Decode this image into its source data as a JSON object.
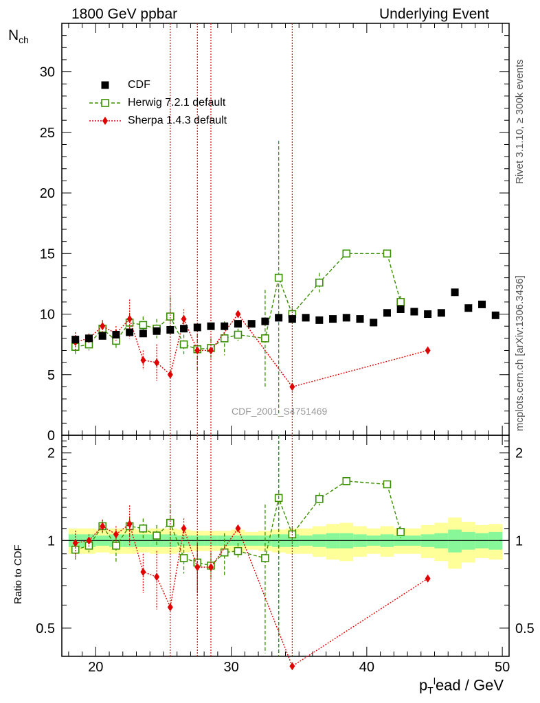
{
  "header": {
    "left": "1800 GeV ppbar",
    "right": "Underlying Event"
  },
  "side_labels": {
    "rivet": "Rivet 3.1.10, ≥ 300k events",
    "mcplots": "mcplots.cern.ch [arXiv:1306.3436]"
  },
  "watermark": "CDF_2001_S4751469",
  "chart_data": [
    {
      "type": "scatter",
      "panel": "main",
      "ylabel_main": "N",
      "ylabel_sub": "ch",
      "xlim": [
        17.5,
        50.5
      ],
      "ylim": [
        0,
        34
      ],
      "yticks": [
        0,
        5,
        10,
        15,
        20,
        25,
        30
      ],
      "legend_placement": "top-left",
      "series": [
        {
          "name": "CDF",
          "color": "#000000",
          "marker": "filled-square",
          "x": [
            18.5,
            19.5,
            20.5,
            21.5,
            22.5,
            23.5,
            24.5,
            25.5,
            26.5,
            27.5,
            28.5,
            29.5,
            30.5,
            31.5,
            32.5,
            33.5,
            34.5,
            35.5,
            36.5,
            37.5,
            38.5,
            39.5,
            40.5,
            41.5,
            42.5,
            43.5,
            44.5,
            45.5,
            46.5,
            47.5,
            48.5,
            49.5
          ],
          "y": [
            7.9,
            8.0,
            8.2,
            8.3,
            8.5,
            8.4,
            8.6,
            8.7,
            8.8,
            8.9,
            9.0,
            9.0,
            9.2,
            9.2,
            9.4,
            9.7,
            9.6,
            9.7,
            9.5,
            9.6,
            9.7,
            9.6,
            9.3,
            10.1,
            10.4,
            10.2,
            10.0,
            10.1,
            11.8,
            10.5,
            10.8,
            9.9
          ]
        },
        {
          "name": "Herwig 7.2.1 default",
          "color": "#3a8f00",
          "marker": "open-square",
          "x": [
            18.5,
            19.5,
            20.5,
            21.5,
            22.5,
            23.5,
            24.5,
            25.5,
            26.5,
            27.5,
            28.5,
            29.5,
            30.5,
            32.5,
            33.5,
            34.5,
            36.5,
            38.5,
            41.5,
            42.5
          ],
          "y": [
            7.3,
            7.5,
            8.8,
            7.8,
            9.3,
            9.1,
            8.8,
            9.8,
            7.5,
            7.1,
            7.2,
            8.0,
            8.3,
            8.0,
            13.0,
            10.0,
            12.6,
            15.0,
            15.0,
            11.0
          ],
          "err": [
            0.6,
            0.5,
            0.7,
            0.6,
            0.8,
            0.7,
            0.8,
            1.6,
            0.8,
            1.7,
            0.8,
            1.4,
            0.5,
            4.0,
            11.3,
            0.5,
            0.8,
            0.0,
            0.0,
            0.5
          ]
        },
        {
          "name": "Sherpa 1.4.3 default",
          "color": "#e00000",
          "marker": "filled-diamond",
          "x": [
            18.5,
            19.5,
            20.5,
            21.5,
            22.5,
            23.5,
            24.5,
            25.5,
            26.5,
            27.5,
            28.5,
            30.5,
            34.5,
            44.5
          ],
          "y": [
            7.7,
            8.0,
            9.0,
            8.4,
            9.6,
            6.2,
            6.0,
            5.0,
            9.6,
            7.0,
            7.0,
            10.0,
            4.0,
            7.0
          ],
          "err": [
            0.8,
            0.4,
            0.5,
            0.6,
            1.6,
            0.8,
            1.5,
            0,
            0.8,
            1.4,
            0,
            0,
            0,
            0
          ],
          "full_height_err": [
            25.5,
            27.5,
            28.5,
            34.5
          ]
        }
      ]
    },
    {
      "type": "scatter",
      "panel": "ratio",
      "ylabel": "Ratio to CDF",
      "xlabel_main": "p",
      "xlabel_sub": "T",
      "xlabel_sup": "l",
      "xlabel_rest": "ead / GeV",
      "xlim": [
        17.5,
        50.5
      ],
      "ylim": [
        0.4,
        2.3
      ],
      "yticks": [
        0.5,
        1,
        2
      ],
      "xticks": [
        20,
        30,
        40,
        50
      ],
      "band_x": [
        18,
        19,
        20,
        21,
        22,
        23,
        24,
        25,
        26,
        27,
        28,
        29,
        30,
        31,
        32,
        33,
        34,
        35,
        36,
        37,
        38,
        39,
        40,
        41,
        42,
        43,
        44,
        45,
        46,
        47,
        48,
        49,
        50
      ],
      "band_inner": [
        0.05,
        0.05,
        0.04,
        0.05,
        0.05,
        0.05,
        0.05,
        0.05,
        0.04,
        0.04,
        0.04,
        0.04,
        0.04,
        0.04,
        0.04,
        0.05,
        0.05,
        0.04,
        0.05,
        0.06,
        0.06,
        0.05,
        0.04,
        0.05,
        0.04,
        0.04,
        0.05,
        0.06,
        0.09,
        0.07,
        0.06,
        0.07
      ],
      "band_outer": [
        0.1,
        0.1,
        0.09,
        0.1,
        0.1,
        0.09,
        0.1,
        0.1,
        0.09,
        0.08,
        0.08,
        0.08,
        0.09,
        0.07,
        0.08,
        0.09,
        0.1,
        0.1,
        0.12,
        0.14,
        0.15,
        0.12,
        0.1,
        0.12,
        0.1,
        0.1,
        0.13,
        0.15,
        0.2,
        0.16,
        0.13,
        0.14
      ],
      "series": [
        {
          "name": "Herwig 7.2.1 default",
          "x": [
            18.5,
            19.5,
            20.5,
            21.5,
            22.5,
            23.5,
            24.5,
            25.5,
            26.5,
            27.5,
            28.5,
            29.5,
            30.5,
            32.5,
            33.5,
            34.5,
            36.5,
            38.5,
            41.5,
            42.5
          ],
          "y": [
            0.93,
            0.96,
            1.12,
            0.96,
            1.12,
            1.1,
            1.04,
            1.15,
            0.87,
            0.84,
            0.82,
            0.91,
            0.92,
            0.87,
            1.4,
            1.05,
            1.39,
            1.6,
            1.56,
            1.07
          ],
          "err": [
            0.07,
            0.05,
            0.06,
            0.12,
            0.08,
            0.09,
            0.09,
            0.18,
            0.1,
            0.18,
            0.09,
            0.15,
            0.06,
            0.46,
            1.2,
            0.06,
            0.07,
            0.0,
            0.0,
            0.05
          ]
        },
        {
          "name": "Sherpa 1.4.3 default",
          "x": [
            18.5,
            19.5,
            20.5,
            21.5,
            22.5,
            23.5,
            24.5,
            25.5,
            26.5,
            27.5,
            28.5,
            30.5,
            34.5,
            44.5
          ],
          "y": [
            0.98,
            1.0,
            1.12,
            1.05,
            1.14,
            0.78,
            0.75,
            0.59,
            1.1,
            0.81,
            0.81,
            1.1,
            0.37,
            0.74
          ],
          "err": [
            0.1,
            0.05,
            0.06,
            0.07,
            0.18,
            0.12,
            0.17,
            0,
            0.09,
            0.16,
            0,
            0,
            0,
            0
          ],
          "full_height_err": [
            25.5,
            27.5,
            28.5,
            34.5
          ]
        }
      ]
    }
  ]
}
